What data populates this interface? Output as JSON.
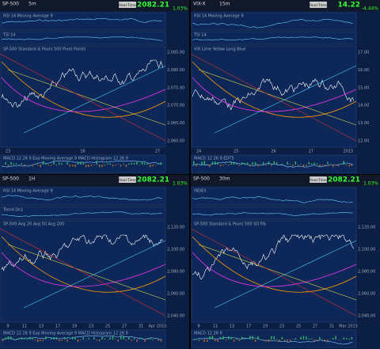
{
  "panels": [
    {
      "symbol": "SP-500",
      "interval": "5m",
      "button": "Real-Time",
      "price": "2082.21",
      "change": "1.03%",
      "indicators": [
        "RSI 14  Moving Average 9",
        "TSI 14",
        "SP-500 Standard & Poors 500  Pivot Points",
        "MACD 12 26 9  Exp Moving Average 9  MACD Histogram 12 26 9"
      ],
      "x_labels": [
        "23",
        "26",
        "27"
      ],
      "y_labels": [
        "2,085.00",
        "2,080.00",
        "2,075.00",
        "2,070.00",
        "2,065.00",
        "2,060.00"
      ]
    },
    {
      "symbol": "VIX-X",
      "interval": "15m",
      "button": "Real-Time",
      "price": "14.22",
      "change": "-4.44%",
      "indicators": [
        "RSI 14  Moving Average 9",
        "TSI 14",
        "VIX  Lime  Yellow  Long Blue",
        "MACD 12 26 9  EDTS"
      ],
      "x_labels": [
        "24",
        "25",
        "26",
        "27",
        "2015"
      ],
      "y_labels": [
        "17.00",
        "16.00",
        "15.00",
        "14.00",
        "13.00",
        "12.00"
      ]
    },
    {
      "symbol": "SP-500",
      "interval": "1H",
      "button": "Real-Time",
      "price": "2082.21",
      "change": "1.03%",
      "indicators": [
        "RSI 14  Moving Average 9",
        "Trend  Dn1",
        "SP-500  Avg 20  Avg 50  Avg 200",
        "MACD 12 26 9  Exp Moving Average 9  MACD Histogram 12 26 9"
      ],
      "x_labels": [
        "9",
        "11",
        "13",
        "17",
        "19",
        "23",
        "25",
        "27",
        "31",
        "Apr 2015"
      ],
      "y_labels": [
        "2,120.00",
        "2,100.00",
        "2,080.00",
        "2,060.00",
        "2,040.00"
      ]
    },
    {
      "symbol": "SP-500",
      "interval": "30m",
      "button": "Real-Time",
      "price": "2082.21",
      "change": "1.03%",
      "indicators": [
        "INDEX",
        "",
        "SP-500 Standard & Poors 500  SD  Fib",
        "MACD 12 26 9"
      ],
      "x_labels": [
        "9",
        "11",
        "13",
        "17",
        "19",
        "23",
        "25",
        "27",
        "31",
        "Mar 2015"
      ],
      "y_labels": [
        "2,120.00",
        "2,100.00",
        "2,080.00",
        "2,060.00",
        "2,040.00"
      ]
    }
  ]
}
